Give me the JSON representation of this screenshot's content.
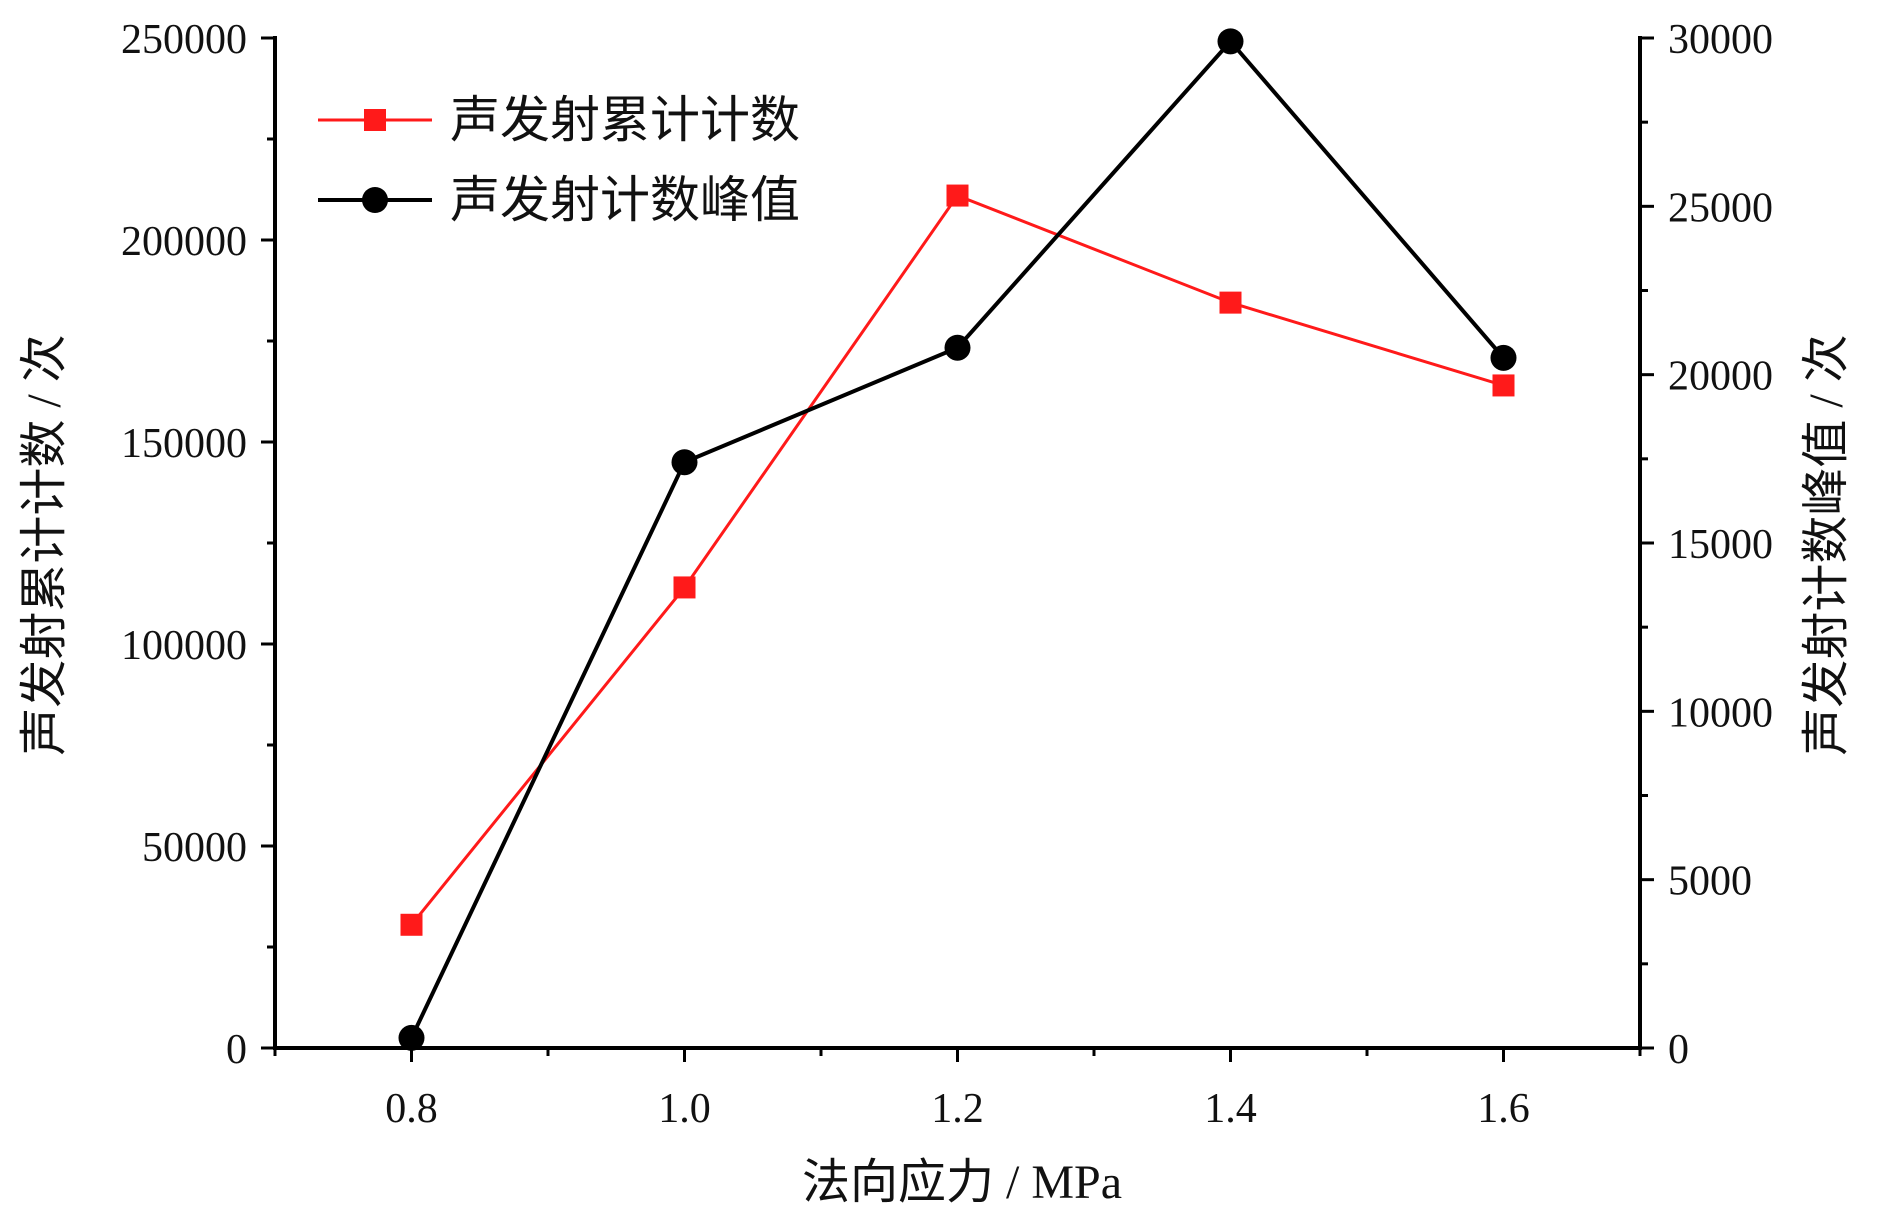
{
  "chart_data": {
    "type": "line",
    "xlabel": "法向应力 / MPa",
    "ylabel_left": "声发射累计计数 / 次",
    "ylabel_right": "声发射计数峰值 / 次",
    "xlim": [
      0.7,
      1.7
    ],
    "ylim_left": [
      0,
      250000
    ],
    "ylim_right": [
      0,
      30000
    ],
    "x_ticks": [
      "0.8",
      "1.0",
      "1.2",
      "1.4",
      "1.6"
    ],
    "x_tick_values": [
      0.8,
      1.0,
      1.2,
      1.4,
      1.6
    ],
    "y_left_ticks": [
      "0",
      "50000",
      "100000",
      "150000",
      "200000",
      "250000"
    ],
    "y_left_tick_values": [
      0,
      50000,
      100000,
      150000,
      200000,
      250000
    ],
    "y_right_ticks": [
      "0",
      "5000",
      "10000",
      "15000",
      "20000",
      "25000",
      "30000"
    ],
    "y_right_tick_values": [
      0,
      5000,
      10000,
      15000,
      20000,
      25000,
      30000
    ],
    "grid": false,
    "legend_position": "top-left",
    "x": [
      0.8,
      1.0,
      1.2,
      1.4,
      1.6
    ],
    "series": [
      {
        "name": "声发射累计计数",
        "axis": "left",
        "marker": "square",
        "color": "#ff1a1a",
        "values": [
          30500,
          114000,
          211000,
          184500,
          164000
        ]
      },
      {
        "name": "声发射计数峰值",
        "axis": "right",
        "marker": "circle",
        "color": "#000000",
        "values": [
          300,
          17400,
          20800,
          29900,
          20500
        ]
      }
    ]
  }
}
